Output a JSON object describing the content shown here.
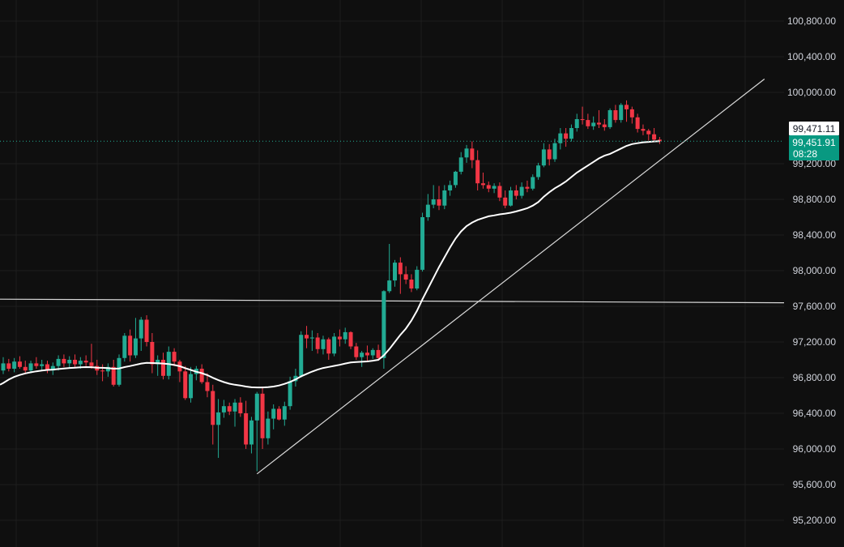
{
  "chart_data": {
    "type": "candlestick",
    "title": "",
    "xlabel": "",
    "ylabel": "",
    "ylim": [
      95000,
      101000
    ],
    "y_ticks": [
      "100,800.00",
      "100,400.00",
      "100,000.00",
      "99,200.00",
      "98,800.00",
      "98,400.00",
      "98,000.00",
      "97,600.00",
      "97,200.00",
      "96,800.00",
      "96,400.00",
      "96,000.00",
      "95,600.00",
      "95,200.00"
    ],
    "grid": true,
    "colors": {
      "background": "#0f0f0f",
      "grid": "#1e1e1e",
      "up": "#22ab94",
      "down": "#f23645",
      "moving_average": "#ffffff",
      "trendline": "#d9d9d9",
      "crosshair_tag_bg": "#ffffff",
      "price_tag_bg": "#089981"
    },
    "crosshair_label": "99,471.11",
    "last_price": {
      "value": "99,451.91",
      "countdown": "08:28",
      "price": 99451.91
    },
    "horizontal_line": {
      "start": 97680,
      "end": 97640
    },
    "trendline": {
      "start_index": 46,
      "start_price": 95720,
      "end_index": 138,
      "end_price": 100150
    },
    "candles": [
      [
        96880,
        97030,
        96840,
        96960
      ],
      [
        96960,
        97010,
        96870,
        96900
      ],
      [
        96900,
        97020,
        96860,
        96980
      ],
      [
        96980,
        97040,
        96900,
        96920
      ],
      [
        96920,
        96990,
        96840,
        96880
      ],
      [
        96880,
        96990,
        96850,
        96960
      ],
      [
        96960,
        97030,
        96900,
        96930
      ],
      [
        96930,
        97000,
        96880,
        96950
      ],
      [
        96950,
        96990,
        96850,
        96880
      ],
      [
        96880,
        96970,
        96830,
        96930
      ],
      [
        96930,
        97050,
        96880,
        97010
      ],
      [
        97010,
        97060,
        96920,
        96960
      ],
      [
        96960,
        97040,
        96910,
        97000
      ],
      [
        97000,
        97060,
        96920,
        96950
      ],
      [
        96950,
        97030,
        96900,
        96990
      ],
      [
        96990,
        97050,
        96930,
        96970
      ],
      [
        96970,
        97180,
        96900,
        96930
      ],
      [
        96930,
        97000,
        96830,
        96880
      ],
      [
        96880,
        96950,
        96760,
        96870
      ],
      [
        96870,
        96960,
        96810,
        96920
      ],
      [
        96920,
        97000,
        96700,
        96720
      ],
      [
        96720,
        97060,
        96700,
        97020
      ],
      [
        97020,
        97300,
        96980,
        97270
      ],
      [
        97270,
        97340,
        96980,
        97050
      ],
      [
        97050,
        97470,
        97020,
        97240
      ],
      [
        97240,
        97480,
        97100,
        97450
      ],
      [
        97450,
        97500,
        97150,
        97200
      ],
      [
        97200,
        97300,
        96850,
        96950
      ],
      [
        96950,
        97050,
        96820,
        97000
      ],
      [
        97000,
        97080,
        96780,
        96820
      ],
      [
        96820,
        97150,
        96780,
        97090
      ],
      [
        97090,
        97130,
        96930,
        96980
      ],
      [
        96980,
        97000,
        96750,
        96870
      ],
      [
        96870,
        96930,
        96550,
        96570
      ],
      [
        96570,
        96920,
        96520,
        96840
      ],
      [
        96840,
        96930,
        96770,
        96900
      ],
      [
        96900,
        96950,
        96730,
        96750
      ],
      [
        96750,
        96850,
        96580,
        96650
      ],
      [
        96650,
        96720,
        96050,
        96270
      ],
      [
        96270,
        96560,
        95900,
        96410
      ],
      [
        96410,
        96550,
        96350,
        96480
      ],
      [
        96480,
        96520,
        96380,
        96420
      ],
      [
        96420,
        96560,
        96250,
        96520
      ],
      [
        96520,
        96580,
        96360,
        96400
      ],
      [
        96400,
        96540,
        96000,
        96050
      ],
      [
        96050,
        96360,
        95950,
        96320
      ],
      [
        96320,
        96640,
        95750,
        96620
      ],
      [
        96620,
        96700,
        96000,
        96120
      ],
      [
        96120,
        96420,
        96050,
        96340
      ],
      [
        96340,
        96500,
        96220,
        96450
      ],
      [
        96450,
        96480,
        96320,
        96330
      ],
      [
        96330,
        96530,
        96260,
        96480
      ],
      [
        96480,
        96810,
        96440,
        96760
      ],
      [
        96760,
        96900,
        96700,
        96820
      ],
      [
        96820,
        97320,
        96800,
        97280
      ],
      [
        97280,
        97380,
        97130,
        97240
      ],
      [
        97240,
        97330,
        97100,
        97250
      ],
      [
        97250,
        97300,
        97070,
        97120
      ],
      [
        97120,
        97270,
        97060,
        97230
      ],
      [
        97230,
        97250,
        97000,
        97070
      ],
      [
        97070,
        97300,
        97040,
        97260
      ],
      [
        97260,
        97340,
        97150,
        97230
      ],
      [
        97230,
        97360,
        97180,
        97310
      ],
      [
        97310,
        97320,
        97120,
        97150
      ],
      [
        97150,
        97190,
        97000,
        97030
      ],
      [
        97030,
        97100,
        96920,
        97080
      ],
      [
        97080,
        97160,
        96980,
        97050
      ],
      [
        97050,
        97130,
        97010,
        97110
      ],
      [
        97110,
        97170,
        96990,
        97020
      ],
      [
        97020,
        97780,
        96900,
        97770
      ],
      [
        97770,
        98300,
        97750,
        97890
      ],
      [
        97890,
        98120,
        97820,
        98090
      ],
      [
        98090,
        98150,
        97740,
        97960
      ],
      [
        97960,
        98050,
        97850,
        97900
      ],
      [
        97900,
        97960,
        97760,
        97800
      ],
      [
        97800,
        98050,
        97780,
        98010
      ],
      [
        98010,
        98650,
        97990,
        98600
      ],
      [
        98600,
        98860,
        98560,
        98740
      ],
      [
        98740,
        98960,
        98700,
        98800
      ],
      [
        98800,
        98950,
        98680,
        98730
      ],
      [
        98730,
        98960,
        98690,
        98900
      ],
      [
        98900,
        99010,
        98840,
        98960
      ],
      [
        98960,
        99120,
        98930,
        99110
      ],
      [
        99110,
        99330,
        99080,
        99270
      ],
      [
        99270,
        99410,
        99210,
        99370
      ],
      [
        99370,
        99450,
        99150,
        99240
      ],
      [
        99240,
        99350,
        98900,
        98980
      ],
      [
        98980,
        99100,
        98920,
        98960
      ],
      [
        98960,
        99000,
        98880,
        98920
      ],
      [
        98920,
        98980,
        98870,
        98950
      ],
      [
        98950,
        98990,
        98780,
        98820
      ],
      [
        98820,
        98900,
        98700,
        98730
      ],
      [
        98730,
        98940,
        98720,
        98900
      ],
      [
        98900,
        98960,
        98800,
        98840
      ],
      [
        98840,
        98990,
        98810,
        98940
      ],
      [
        98940,
        99010,
        98880,
        98920
      ],
      [
        98920,
        99080,
        98900,
        99050
      ],
      [
        99050,
        99210,
        99020,
        99180
      ],
      [
        99180,
        99430,
        99160,
        99360
      ],
      [
        99360,
        99420,
        99180,
        99250
      ],
      [
        99250,
        99480,
        99220,
        99430
      ],
      [
        99430,
        99600,
        99360,
        99540
      ],
      [
        99540,
        99600,
        99390,
        99480
      ],
      [
        99480,
        99640,
        99450,
        99600
      ],
      [
        99600,
        99760,
        99560,
        99700
      ],
      [
        99700,
        99840,
        99640,
        99690
      ],
      [
        99690,
        99760,
        99590,
        99620
      ],
      [
        99620,
        99730,
        99580,
        99660
      ],
      [
        99660,
        99800,
        99600,
        99640
      ],
      [
        99640,
        99700,
        99570,
        99610
      ],
      [
        99610,
        99820,
        99590,
        99800
      ],
      [
        99800,
        99860,
        99660,
        99690
      ],
      [
        99690,
        99880,
        99660,
        99860
      ],
      [
        99860,
        99910,
        99670,
        99810
      ],
      [
        99810,
        99840,
        99650,
        99720
      ],
      [
        99720,
        99760,
        99550,
        99590
      ],
      [
        99590,
        99640,
        99520,
        99570
      ],
      [
        99570,
        99590,
        99460,
        99530
      ],
      [
        99530,
        99600,
        99440,
        99470
      ],
      [
        99470,
        99500,
        99420,
        99452
      ]
    ],
    "moving_average": [
      96740,
      96778,
      96808,
      96830,
      96847,
      96860,
      96871,
      96880,
      96886,
      96890,
      96896,
      96903,
      96908,
      96912,
      96916,
      96918,
      96917,
      96912,
      96910,
      96906,
      96900,
      96903,
      96918,
      96930,
      96944,
      96958,
      96966,
      96964,
      96962,
      96958,
      96952,
      96942,
      96928,
      96906,
      96886,
      96866,
      96850,
      96828,
      96798,
      96772,
      96750,
      96732,
      96720,
      96712,
      96700,
      96692,
      96690,
      96690,
      96694,
      96700,
      96712,
      96730,
      96752,
      96780,
      96815,
      96842,
      96868,
      96890,
      96908,
      96920,
      96932,
      96944,
      96958,
      96970,
      96975,
      96978,
      96982,
      96990,
      97000,
      97050,
      97120,
      97200,
      97280,
      97350,
      97440,
      97550,
      97680,
      97800,
      97920,
      98040,
      98150,
      98260,
      98360,
      98440,
      98500,
      98540,
      98570,
      98590,
      98610,
      98620,
      98632,
      98640,
      98650,
      98665,
      98682,
      98700,
      98730,
      98770,
      98830,
      98880,
      98925,
      98960,
      99000,
      99050,
      99100,
      99140,
      99180,
      99220,
      99260,
      99290,
      99310,
      99340,
      99370,
      99400,
      99420,
      99430,
      99440,
      99445,
      99450,
      99452
    ]
  }
}
